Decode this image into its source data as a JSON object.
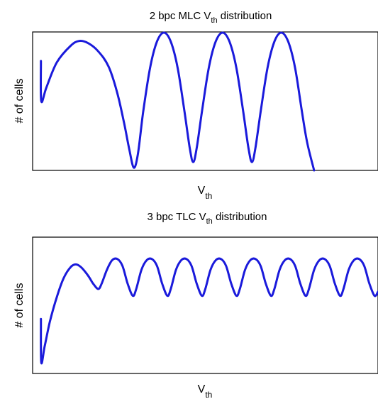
{
  "chart_data": [
    {
      "type": "line",
      "title": {
        "prefix": "2 bpc MLC V",
        "sub": "th",
        "suffix": " distribution"
      },
      "xlabel": {
        "main": "V",
        "sub": "th"
      },
      "ylabel": "# of cells",
      "xlim": [
        0,
        1
      ],
      "ylim": [
        0,
        1
      ],
      "grid": false,
      "line_color": "#1a1adb",
      "series": [
        {
          "values": [
            [
              0.024,
              0.79
            ],
            [
              0.025,
              0.5
            ],
            [
              0.04,
              0.6
            ],
            [
              0.07,
              0.78
            ],
            [
              0.11,
              0.9
            ],
            [
              0.135,
              0.935
            ],
            [
              0.16,
              0.92
            ],
            [
              0.19,
              0.86
            ],
            [
              0.22,
              0.75
            ],
            [
              0.245,
              0.56
            ],
            [
              0.265,
              0.34
            ],
            [
              0.28,
              0.15
            ],
            [
              0.293,
              0.02
            ],
            [
              0.305,
              0.12
            ],
            [
              0.32,
              0.42
            ],
            [
              0.34,
              0.74
            ],
            [
              0.36,
              0.93
            ],
            [
              0.38,
              0.995
            ],
            [
              0.4,
              0.93
            ],
            [
              0.42,
              0.74
            ],
            [
              0.44,
              0.42
            ],
            [
              0.455,
              0.16
            ],
            [
              0.465,
              0.06
            ],
            [
              0.475,
              0.16
            ],
            [
              0.49,
              0.42
            ],
            [
              0.51,
              0.74
            ],
            [
              0.53,
              0.93
            ],
            [
              0.55,
              0.995
            ],
            [
              0.57,
              0.93
            ],
            [
              0.59,
              0.74
            ],
            [
              0.61,
              0.42
            ],
            [
              0.625,
              0.16
            ],
            [
              0.635,
              0.06
            ],
            [
              0.645,
              0.16
            ],
            [
              0.66,
              0.42
            ],
            [
              0.68,
              0.74
            ],
            [
              0.7,
              0.93
            ],
            [
              0.72,
              0.995
            ],
            [
              0.74,
              0.93
            ],
            [
              0.76,
              0.74
            ],
            [
              0.78,
              0.42
            ],
            [
              0.795,
              0.2
            ],
            [
              0.815,
              0.0
            ]
          ]
        }
      ]
    },
    {
      "type": "line",
      "title": {
        "prefix": "3 bpc TLC V",
        "sub": "th",
        "suffix": " distribution"
      },
      "xlabel": {
        "main": "V",
        "sub": "th"
      },
      "ylabel": "# of cells",
      "xlim": [
        0,
        1
      ],
      "ylim": [
        0,
        1
      ],
      "grid": false,
      "line_color": "#1a1adb",
      "series": [
        {
          "values": [
            [
              0.024,
              0.4
            ],
            [
              0.025,
              0.08
            ],
            [
              0.035,
              0.2
            ],
            [
              0.05,
              0.38
            ],
            [
              0.07,
              0.56
            ],
            [
              0.09,
              0.7
            ],
            [
              0.11,
              0.78
            ],
            [
              0.125,
              0.8
            ],
            [
              0.14,
              0.78
            ],
            [
              0.16,
              0.72
            ],
            [
              0.175,
              0.66
            ],
            [
              0.19,
              0.62
            ],
            [
              0.2,
              0.66
            ],
            [
              0.215,
              0.76
            ],
            [
              0.23,
              0.83
            ],
            [
              0.245,
              0.84
            ],
            [
              0.26,
              0.79
            ],
            [
              0.275,
              0.66
            ],
            [
              0.29,
              0.57
            ],
            [
              0.3,
              0.62
            ],
            [
              0.315,
              0.76
            ],
            [
              0.33,
              0.83
            ],
            [
              0.345,
              0.84
            ],
            [
              0.36,
              0.79
            ],
            [
              0.375,
              0.66
            ],
            [
              0.39,
              0.57
            ],
            [
              0.4,
              0.62
            ],
            [
              0.415,
              0.76
            ],
            [
              0.43,
              0.83
            ],
            [
              0.445,
              0.84
            ],
            [
              0.46,
              0.79
            ],
            [
              0.475,
              0.66
            ],
            [
              0.49,
              0.57
            ],
            [
              0.5,
              0.62
            ],
            [
              0.515,
              0.76
            ],
            [
              0.53,
              0.83
            ],
            [
              0.545,
              0.84
            ],
            [
              0.56,
              0.79
            ],
            [
              0.575,
              0.66
            ],
            [
              0.59,
              0.57
            ],
            [
              0.6,
              0.62
            ],
            [
              0.615,
              0.76
            ],
            [
              0.63,
              0.83
            ],
            [
              0.645,
              0.84
            ],
            [
              0.66,
              0.79
            ],
            [
              0.675,
              0.66
            ],
            [
              0.69,
              0.57
            ],
            [
              0.7,
              0.62
            ],
            [
              0.715,
              0.76
            ],
            [
              0.73,
              0.83
            ],
            [
              0.745,
              0.84
            ],
            [
              0.76,
              0.79
            ],
            [
              0.775,
              0.66
            ],
            [
              0.79,
              0.57
            ],
            [
              0.8,
              0.62
            ],
            [
              0.815,
              0.76
            ],
            [
              0.83,
              0.83
            ],
            [
              0.845,
              0.84
            ],
            [
              0.86,
              0.79
            ],
            [
              0.875,
              0.66
            ],
            [
              0.89,
              0.57
            ],
            [
              0.9,
              0.62
            ],
            [
              0.915,
              0.76
            ],
            [
              0.93,
              0.83
            ],
            [
              0.945,
              0.84
            ],
            [
              0.96,
              0.79
            ],
            [
              0.975,
              0.66
            ],
            [
              0.99,
              0.57
            ],
            [
              1.0,
              0.6
            ]
          ]
        }
      ]
    }
  ]
}
